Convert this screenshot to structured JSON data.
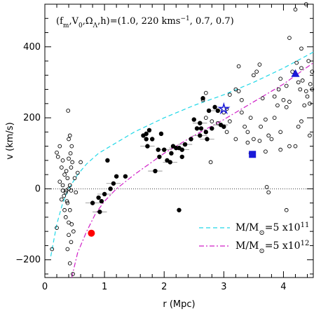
{
  "chart_data": {
    "type": "scatter",
    "xlabel": "r (Mpc)",
    "ylabel": "v (km/s)",
    "xlim": [
      0,
      4.5
    ],
    "ylim": [
      -250,
      520
    ],
    "x_ticks": [
      "0",
      "1",
      "2",
      "3",
      "4"
    ],
    "y_ticks": [
      "−200",
      "0",
      "200",
      "400"
    ],
    "parameter_label": "(f_m,V_0,Ω_Λ,h)=(1.0, 220 kms⁻¹, 0.7, 0.7)",
    "legend": [
      {
        "label": "M/M_⊙=5 x10^11",
        "color": "#20d8e8",
        "style": "dashed"
      },
      {
        "label": "M/M_⊙=5 x10^12",
        "color": "#d020c8",
        "style": "dash-dot"
      }
    ],
    "zero_line": true,
    "series": [
      {
        "marker": "open-circle",
        "color": "#000000",
        "points": [
          [
            0.2,
            102
          ],
          [
            0.25,
            120
          ],
          [
            0.22,
            90
          ],
          [
            0.3,
            80
          ],
          [
            0.28,
            60
          ],
          [
            0.33,
            40
          ],
          [
            0.25,
            20
          ],
          [
            0.3,
            10
          ],
          [
            0.36,
            -5
          ],
          [
            0.32,
            -20
          ],
          [
            0.38,
            -40
          ],
          [
            0.42,
            -60
          ],
          [
            0.35,
            -80
          ],
          [
            0.4,
            -95
          ],
          [
            0.45,
            -100
          ],
          [
            0.48,
            -120
          ],
          [
            0.4,
            -130
          ],
          [
            0.44,
            -150
          ],
          [
            0.38,
            -170
          ],
          [
            0.42,
            -210
          ],
          [
            0.4,
            0
          ],
          [
            0.42,
            10
          ],
          [
            0.38,
            30
          ],
          [
            0.36,
            50
          ],
          [
            0.44,
            60
          ],
          [
            0.46,
            75
          ],
          [
            0.4,
            85
          ],
          [
            0.43,
            100
          ],
          [
            0.45,
            120
          ],
          [
            0.4,
            140
          ],
          [
            0.42,
            150
          ],
          [
            0.39,
            220
          ],
          [
            0.44,
            -5
          ],
          [
            0.5,
            30
          ],
          [
            0.52,
            -10
          ],
          [
            0.55,
            45
          ],
          [
            0.3,
            -5
          ],
          [
            0.28,
            -30
          ],
          [
            0.33,
            -60
          ],
          [
            0.2,
            -110
          ],
          [
            0.6,
            75
          ],
          [
            0.12,
            -170
          ],
          [
            0.47,
            -240
          ],
          [
            0.35,
            -10
          ],
          [
            0.37,
            -35
          ],
          [
            2.7,
            200
          ],
          [
            2.8,
            190
          ],
          [
            3.0,
            215
          ],
          [
            3.05,
            225
          ],
          [
            3.1,
            265
          ],
          [
            3.2,
            280
          ],
          [
            3.1,
            190
          ],
          [
            3.05,
            160
          ],
          [
            2.9,
            185
          ],
          [
            2.78,
            75
          ],
          [
            2.65,
            250
          ],
          [
            2.7,
            270
          ],
          [
            3.25,
            275
          ],
          [
            3.3,
            215
          ],
          [
            3.35,
            175
          ],
          [
            3.2,
            140
          ],
          [
            3.4,
            160
          ],
          [
            3.45,
            200
          ],
          [
            3.5,
            320
          ],
          [
            3.55,
            330
          ],
          [
            3.4,
            130
          ],
          [
            3.45,
            100
          ],
          [
            3.5,
            140
          ],
          [
            3.6,
            135
          ],
          [
            3.62,
            175
          ],
          [
            3.7,
            195
          ],
          [
            3.75,
            150
          ],
          [
            3.8,
            140
          ],
          [
            3.85,
            200
          ],
          [
            3.9,
            235
          ],
          [
            3.92,
            280
          ],
          [
            3.7,
            105
          ],
          [
            3.72,
            5
          ],
          [
            3.75,
            -10
          ],
          [
            3.95,
            160
          ],
          [
            4.0,
            250
          ],
          [
            4.05,
            230
          ],
          [
            4.1,
            245
          ],
          [
            4.1,
            120
          ],
          [
            4.2,
            120
          ],
          [
            4.25,
            175
          ],
          [
            4.3,
            190
          ],
          [
            4.35,
            235
          ],
          [
            4.4,
            260
          ],
          [
            4.45,
            295
          ],
          [
            4.42,
            360
          ],
          [
            4.3,
            340
          ],
          [
            4.25,
            300
          ],
          [
            4.15,
            330
          ],
          [
            4.05,
            290
          ],
          [
            3.95,
            310
          ],
          [
            3.85,
            260
          ],
          [
            3.65,
            255
          ],
          [
            3.6,
            350
          ],
          [
            3.25,
            345
          ],
          [
            3.3,
            250
          ],
          [
            4.28,
            280
          ],
          [
            4.32,
            305
          ],
          [
            4.38,
            275
          ],
          [
            4.38,
            520
          ],
          [
            4.05,
            -60
          ],
          [
            4.2,
            505
          ],
          [
            4.1,
            425
          ],
          [
            4.22,
            355
          ],
          [
            4.3,
            395
          ],
          [
            4.44,
            150
          ],
          [
            4.44,
            240
          ],
          [
            4.48,
            280
          ],
          [
            4.48,
            330
          ],
          [
            3.95,
            110
          ]
        ]
      },
      {
        "marker": "filled-circle",
        "color": "#000000",
        "points": [
          [
            0.8,
            -40
          ],
          [
            0.9,
            -25
          ],
          [
            0.95,
            -35
          ],
          [
            1.0,
            -15
          ],
          [
            1.1,
            0
          ],
          [
            1.05,
            80
          ],
          [
            1.15,
            15
          ],
          [
            1.2,
            35
          ],
          [
            1.35,
            35
          ],
          [
            0.92,
            -65
          ],
          [
            1.65,
            150
          ],
          [
            1.7,
            140
          ],
          [
            1.72,
            120
          ],
          [
            1.75,
            165
          ],
          [
            1.8,
            140
          ],
          [
            1.85,
            50
          ],
          [
            1.9,
            110
          ],
          [
            1.95,
            155
          ],
          [
            2.0,
            110
          ],
          [
            1.92,
            90
          ],
          [
            2.05,
            80
          ],
          [
            2.1,
            75
          ],
          [
            2.12,
            100
          ],
          [
            2.15,
            120
          ],
          [
            2.2,
            115
          ],
          [
            2.25,
            115
          ],
          [
            2.3,
            90
          ],
          [
            2.35,
            125
          ],
          [
            2.45,
            140
          ],
          [
            2.55,
            170
          ],
          [
            2.6,
            150
          ],
          [
            2.62,
            170
          ],
          [
            2.7,
            160
          ],
          [
            2.72,
            140
          ],
          [
            2.8,
            170
          ],
          [
            2.85,
            230
          ],
          [
            2.9,
            220
          ],
          [
            2.75,
            220
          ],
          [
            2.65,
            255
          ],
          [
            2.95,
            180
          ],
          [
            3.0,
            175
          ],
          [
            2.5,
            195
          ],
          [
            2.6,
            185
          ],
          [
            1.7,
            155
          ],
          [
            2.25,
            -60
          ],
          [
            2.3,
            110
          ]
        ]
      },
      {
        "marker": "filled-circle-red",
        "color": "#ff0000",
        "points": [
          [
            0.78,
            -125
          ]
        ]
      },
      {
        "marker": "star",
        "color": "#1a1ad8",
        "points": [
          [
            3.0,
            225
          ]
        ]
      },
      {
        "marker": "filled-square",
        "color": "#1a1ad8",
        "points": [
          [
            3.48,
            97
          ]
        ]
      },
      {
        "marker": "filled-triangle",
        "color": "#1a1ad8",
        "points": [
          [
            4.2,
            325
          ]
        ]
      }
    ],
    "curves": [
      {
        "name": "M/M_⊙=5 x10^11",
        "color": "#20d8e8",
        "style": "dashed",
        "points": [
          [
            0.1,
            -190
          ],
          [
            0.2,
            -100
          ],
          [
            0.3,
            -40
          ],
          [
            0.4,
            0
          ],
          [
            0.55,
            40
          ],
          [
            0.7,
            70
          ],
          [
            0.9,
            100
          ],
          [
            1.2,
            130
          ],
          [
            1.5,
            160
          ],
          [
            2.0,
            200
          ],
          [
            2.5,
            235
          ],
          [
            3.0,
            265
          ],
          [
            3.5,
            300
          ],
          [
            4.0,
            340
          ],
          [
            4.5,
            385
          ]
        ]
      },
      {
        "name": "M/M_⊙=5 x10^12",
        "color": "#d020c8",
        "style": "dash-dot",
        "points": [
          [
            0.45,
            -250
          ],
          [
            0.55,
            -180
          ],
          [
            0.7,
            -120
          ],
          [
            0.85,
            -70
          ],
          [
            1.0,
            -35
          ],
          [
            1.2,
            0
          ],
          [
            1.5,
            40
          ],
          [
            2.0,
            100
          ],
          [
            2.5,
            150
          ],
          [
            3.0,
            195
          ],
          [
            3.5,
            245
          ],
          [
            4.0,
            295
          ],
          [
            4.5,
            355
          ]
        ]
      }
    ]
  }
}
